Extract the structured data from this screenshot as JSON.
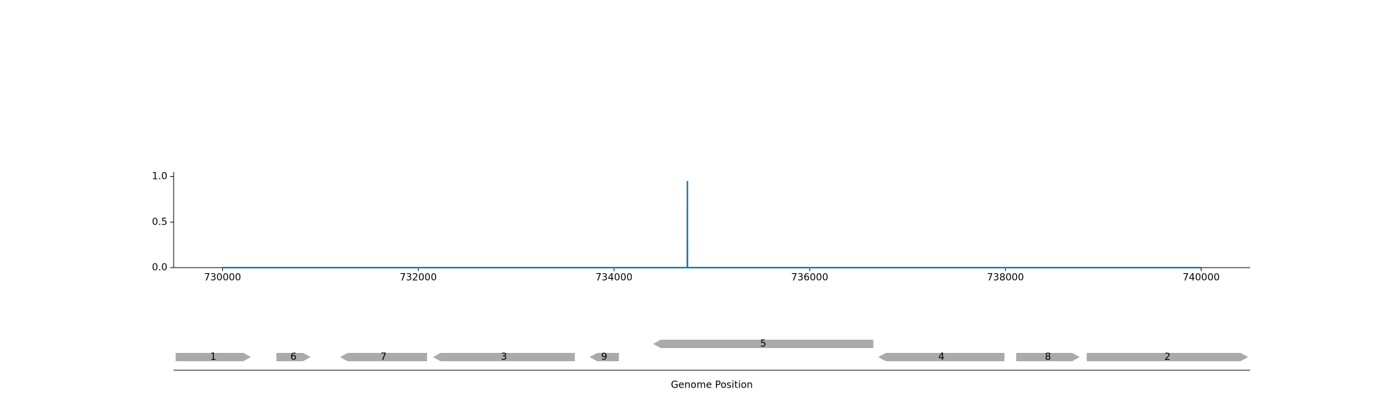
{
  "chart_data": [
    {
      "type": "line",
      "x": [
        730000,
        734749,
        734750,
        734751,
        740000
      ],
      "series": [
        {
          "values": [
            0,
            0,
            0.95,
            0,
            0
          ],
          "color": "#1f77b4"
        }
      ],
      "xlim": [
        729500,
        740500
      ],
      "ylim": [
        0,
        1.05
      ],
      "xticks": [
        730000,
        732000,
        734000,
        736000,
        738000,
        740000
      ],
      "yticks": [
        0.0,
        0.5,
        1.0
      ],
      "ytick_labels": [
        "0.0",
        "0.5",
        "1.0"
      ],
      "xlabel": "",
      "ylabel": "",
      "grid": false
    },
    {
      "type": "gene-track",
      "xlabel": "Genome Position",
      "xlim": [
        729500,
        740500
      ],
      "gene_color": "#aaaaaa",
      "genes": [
        {
          "label": "1",
          "start": 729520,
          "end": 730290,
          "strand": 1,
          "lane": 0
        },
        {
          "label": "6",
          "start": 730550,
          "end": 730900,
          "strand": 1,
          "lane": 0
        },
        {
          "label": "7",
          "start": 731200,
          "end": 732090,
          "strand": -1,
          "lane": 0
        },
        {
          "label": "3",
          "start": 732150,
          "end": 733600,
          "strand": -1,
          "lane": 0
        },
        {
          "label": "9",
          "start": 733750,
          "end": 734050,
          "strand": -1,
          "lane": 0
        },
        {
          "label": "5",
          "start": 734400,
          "end": 736650,
          "strand": -1,
          "lane": 1
        },
        {
          "label": "4",
          "start": 736700,
          "end": 737990,
          "strand": -1,
          "lane": 0
        },
        {
          "label": "8",
          "start": 738110,
          "end": 738760,
          "strand": 1,
          "lane": 0
        },
        {
          "label": "2",
          "start": 738830,
          "end": 740480,
          "strand": 1,
          "lane": 0
        }
      ]
    }
  ]
}
